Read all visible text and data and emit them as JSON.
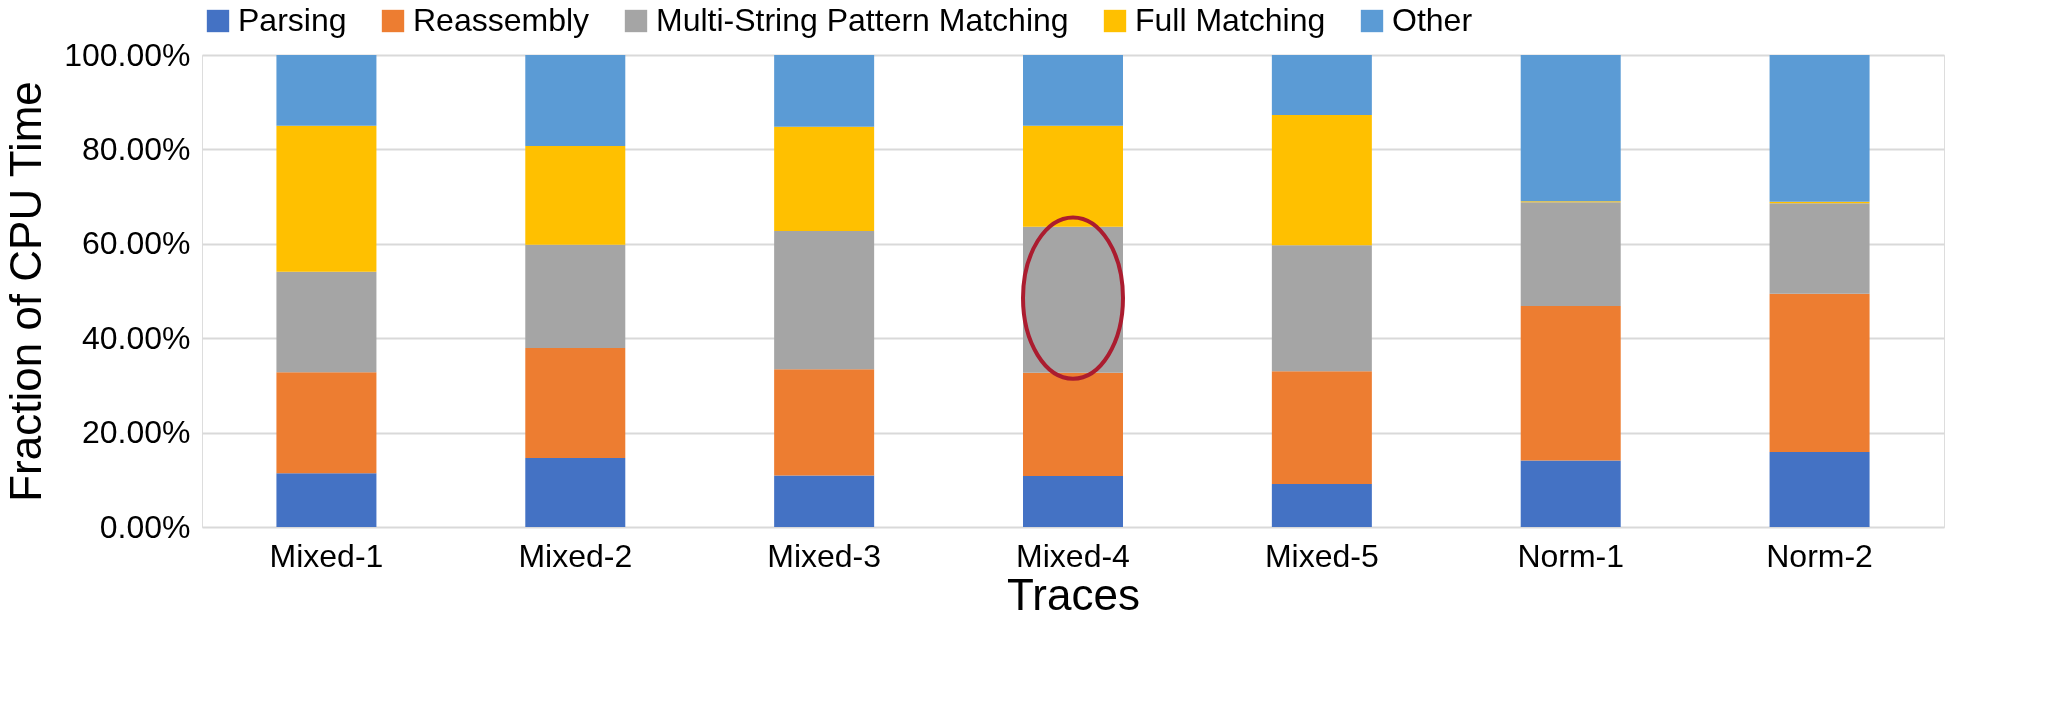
{
  "chart_data": {
    "type": "bar",
    "stacked": true,
    "xlabel": "Traces",
    "ylabel": "Fraction of CPU Time",
    "categories": [
      "Mixed-1",
      "Mixed-2",
      "Mixed-3",
      "Mixed-4",
      "Mixed-5",
      "Norm-1",
      "Norm-2"
    ],
    "series": [
      {
        "name": "Parsing",
        "color": "#4472c4",
        "values": [
          11.4,
          14.6,
          10.9,
          10.8,
          9.1,
          14.1,
          15.9
        ]
      },
      {
        "name": "Reassembly",
        "color": "#ed7d31",
        "values": [
          21.4,
          23.3,
          22.5,
          21.9,
          23.9,
          32.7,
          33.5
        ]
      },
      {
        "name": "Multi-String Pattern Matching",
        "color": "#a5a5a5",
        "values": [
          21.3,
          21.9,
          29.3,
          30.9,
          26.7,
          22.0,
          19.2
        ]
      },
      {
        "name": "Full Matching",
        "color": "#ffc000",
        "values": [
          30.9,
          20.9,
          22.1,
          21.4,
          27.6,
          0.2,
          0.3
        ]
      },
      {
        "name": "Other",
        "color": "#5b9bd5",
        "values": [
          15.0,
          19.3,
          15.2,
          15.0,
          12.7,
          31.0,
          31.1
        ]
      }
    ],
    "ylim": [
      0,
      100
    ],
    "yticks": [
      {
        "value": 0,
        "label": "0.00%"
      },
      {
        "value": 20,
        "label": "20.00%"
      },
      {
        "value": 40,
        "label": "40.00%"
      },
      {
        "value": 60,
        "label": "60.00%"
      },
      {
        "value": 80,
        "label": "80.00%"
      },
      {
        "value": 100,
        "label": "100.00%"
      }
    ],
    "grid": "y",
    "legend": "top"
  }
}
